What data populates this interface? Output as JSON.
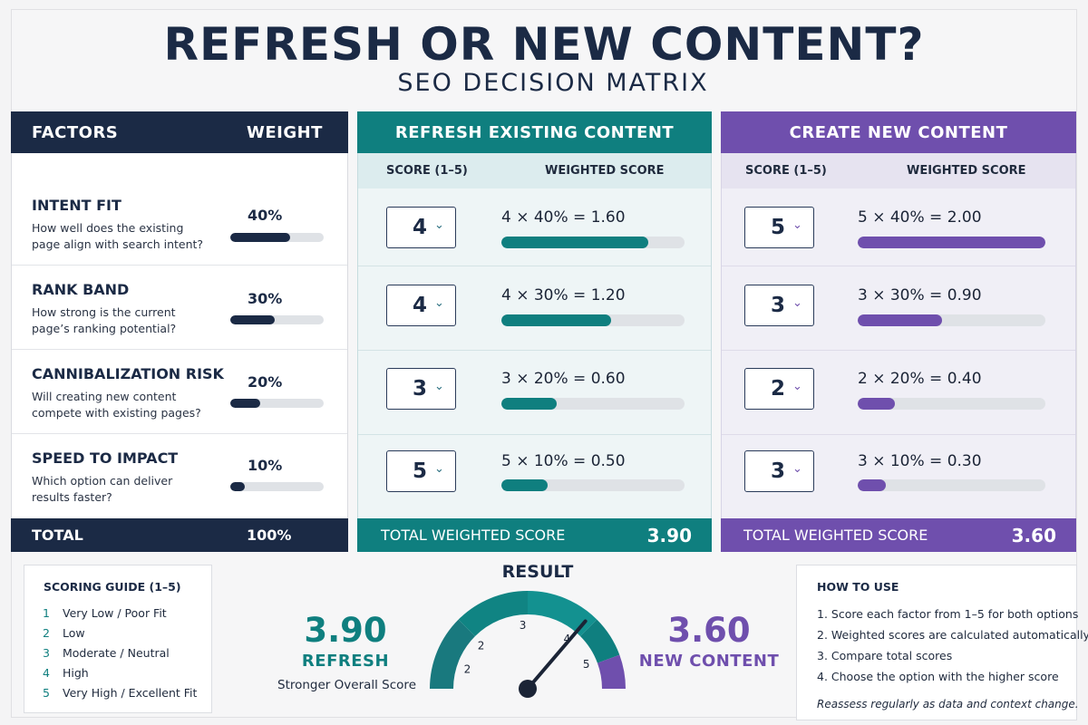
{
  "header": {
    "title": "REFRESH OR NEW CONTENT?",
    "subtitle": "SEO DECISION MATRIX"
  },
  "colors": {
    "navy": "#1b2a45",
    "teal": "#0f7f7f",
    "purple": "#6f4fad"
  },
  "factors_panel": {
    "col_factors": "FACTORS",
    "col_weight": "WEIGHT",
    "total_label": "TOTAL",
    "total_weight": "100%"
  },
  "factors": [
    {
      "name": "INTENT FIT",
      "desc": "How well does the existing page align with search intent?",
      "weight_label": "40%",
      "weight": 0.4
    },
    {
      "name": "RANK BAND",
      "desc": "How strong is the current page’s ranking potential?",
      "weight_label": "30%",
      "weight": 0.3
    },
    {
      "name": "CANNIBALIZATION RISK",
      "desc": "Will creating new content compete with existing pages?",
      "weight_label": "20%",
      "weight": 0.2
    },
    {
      "name": "SPEED TO IMPACT",
      "desc": "Which option can deliver results faster?",
      "weight_label": "10%",
      "weight": 0.1
    }
  ],
  "refresh": {
    "title": "REFRESH EXISTING CONTENT",
    "col_score": "SCORE (1–5)",
    "col_weighted": "WEIGHTED SCORE",
    "rows": [
      {
        "score": "4",
        "calc": "4 × 40% = 1.60",
        "weighted": 1.6
      },
      {
        "score": "4",
        "calc": "4 × 30% = 1.20",
        "weighted": 1.2
      },
      {
        "score": "3",
        "calc": "3 × 20% = 0.60",
        "weighted": 0.6
      },
      {
        "score": "5",
        "calc": "5 × 10% = 0.50",
        "weighted": 0.5
      }
    ],
    "total_label": "TOTAL WEIGHTED SCORE",
    "total": "3.90"
  },
  "new_content": {
    "title": "CREATE NEW CONTENT",
    "col_score": "SCORE (1–5)",
    "col_weighted": "WEIGHTED SCORE",
    "rows": [
      {
        "score": "5",
        "calc": "5 × 40% = 2.00",
        "weighted": 2.0
      },
      {
        "score": "3",
        "calc": "3 × 30% = 0.90",
        "weighted": 0.9
      },
      {
        "score": "2",
        "calc": "2 × 20% = 0.40",
        "weighted": 0.4
      },
      {
        "score": "3",
        "calc": "3 × 10% = 0.30",
        "weighted": 0.3
      }
    ],
    "total_label": "TOTAL WEIGHTED SCORE",
    "total": "3.60"
  },
  "scoring_guide": {
    "title": "SCORING GUIDE (1–5)",
    "items": [
      {
        "n": "1",
        "label": "Very Low / Poor Fit"
      },
      {
        "n": "2",
        "label": "Low"
      },
      {
        "n": "3",
        "label": "Moderate / Neutral"
      },
      {
        "n": "4",
        "label": "High"
      },
      {
        "n": "5",
        "label": "Very High / Excellent Fit"
      }
    ]
  },
  "result": {
    "title": "RESULT",
    "left_value": "3.90",
    "left_label": "REFRESH",
    "left_sub": "Stronger Overall Score",
    "right_value": "3.60",
    "right_label": "NEW CONTENT",
    "gauge_ticks": [
      "2",
      "2",
      "3",
      "4",
      "5"
    ],
    "needle_value": 3.9
  },
  "how_to_use": {
    "title": "HOW TO USE",
    "steps": [
      "1.  Score each factor from 1–5 for both options",
      "2.  Weighted scores are calculated automatically",
      "3.  Compare total scores",
      "4.  Choose the option with the higher score"
    ],
    "note": "Reassess regularly as data and context change."
  }
}
